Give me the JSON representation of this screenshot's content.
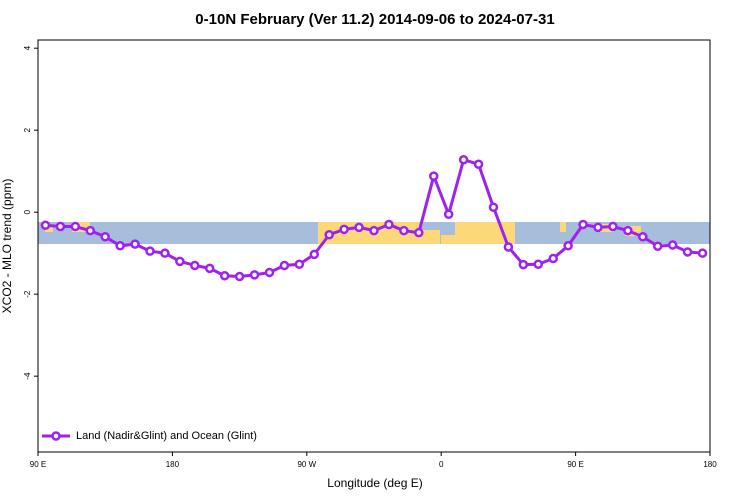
{
  "chart_data": {
    "type": "line",
    "title": "0-10N February (Ver 11.2)   2014-09-06 to 2024-07-31",
    "x_label": "Longitude (deg E)",
    "y_label": "XCO2 - MLO trend (ppm)",
    "x": [
      95,
      105,
      115,
      125,
      135,
      145,
      155,
      165,
      175,
      185,
      195,
      205,
      215,
      225,
      235,
      245,
      255,
      265,
      275,
      285,
      295,
      305,
      315,
      325,
      335,
      345,
      355,
      365,
      375,
      385,
      395,
      405,
      415,
      425,
      435,
      445,
      455,
      465,
      475,
      485,
      495,
      505,
      515,
      525,
      535
    ],
    "series": [
      {
        "name": "Land (Nadir&Glint) and Ocean (Glint)",
        "color": "#a020f0",
        "values": [
          -0.32,
          -0.35,
          -0.35,
          -0.45,
          -0.6,
          -0.82,
          -0.78,
          -0.95,
          -1.0,
          -1.2,
          -1.3,
          -1.37,
          -1.55,
          -1.57,
          -1.53,
          -1.47,
          -1.3,
          -1.27,
          -1.03,
          -0.55,
          -0.42,
          -0.37,
          -0.45,
          -0.3,
          -0.45,
          -0.5,
          0.88,
          -0.05,
          1.28,
          1.17,
          0.12,
          -0.85,
          -1.28,
          -1.27,
          -1.13,
          -0.82,
          -0.3,
          -0.37,
          -0.35,
          -0.45,
          -0.6,
          -0.83,
          -0.8,
          -0.97,
          -1.0
        ]
      }
    ],
    "xlim": [
      90,
      540
    ],
    "ylim": [
      -5.85,
      4.2
    ],
    "xticks": [
      {
        "value": 90,
        "label": "90 E"
      },
      {
        "value": 180,
        "label": "180"
      },
      {
        "value": 270,
        "label": "90 W"
      },
      {
        "value": 360,
        "label": "0"
      },
      {
        "value": 450,
        "label": "90 E"
      },
      {
        "value": 540,
        "label": "180"
      }
    ],
    "yticks": [
      -4,
      -2,
      0,
      2,
      4
    ],
    "legend": "lower left"
  }
}
